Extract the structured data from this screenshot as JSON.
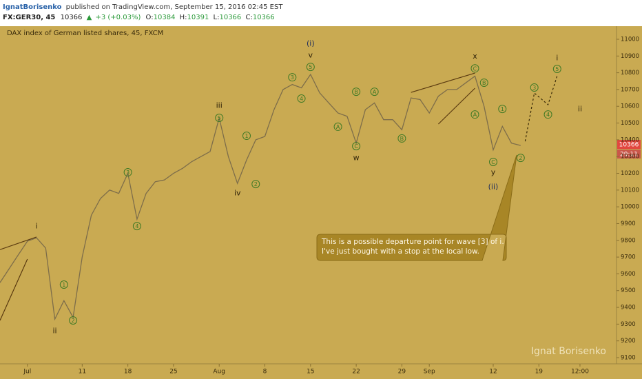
{
  "header": {
    "author": "IgnatBorisenko",
    "published": "published on TradingView.com, September 15, 2016 02:45 EST",
    "symbol": "FX:GER30, 45",
    "last": "10366",
    "arrow": "▲",
    "change": "+3 (+0.03%)",
    "o_label": "O:",
    "o": "10384",
    "h_label": "H:",
    "h": "10391",
    "l_label": "L:",
    "l": "10366",
    "c_label": "C:",
    "c": "10366"
  },
  "chart_data": {
    "type": "line",
    "title": "DAX index of German listed shares, 45, FXCM",
    "watermark": "Ignat Borisenko",
    "price_tag": "10366",
    "countdown": "29:11",
    "background": "#c9aa52",
    "xlim": [
      "2016-06-28",
      "2016-09-29 12:00"
    ],
    "xticks": [
      {
        "value": "2016-07-01",
        "label": "Jul"
      },
      {
        "value": "2016-07-11",
        "label": "11"
      },
      {
        "value": "2016-07-18",
        "label": "18"
      },
      {
        "value": "2016-07-25",
        "label": "25"
      },
      {
        "value": "2016-08-01",
        "label": "Aug"
      },
      {
        "value": "2016-08-08",
        "label": "8"
      },
      {
        "value": "2016-08-15",
        "label": "15"
      },
      {
        "value": "2016-08-22",
        "label": "22"
      },
      {
        "value": "2016-08-29",
        "label": "29"
      },
      {
        "value": "2016-09-01",
        "label": "Sep"
      },
      {
        "value": "2016-09-12",
        "label": "12"
      },
      {
        "value": "2016-09-19",
        "label": "19"
      },
      {
        "value": "2016-09-23 12:00",
        "label": "12:00"
      }
    ],
    "ylim": [
      9063,
      11078
    ],
    "yticks": [
      9100,
      9200,
      9300,
      9400,
      9500,
      9600,
      9700,
      9800,
      9900,
      10000,
      10100,
      10200,
      10300,
      10400,
      10500,
      10600,
      10700,
      10800,
      10900,
      11000
    ],
    "grid": false,
    "price": {
      "color": "#7d6d4a",
      "x": [
        "2016-06-28",
        "2016-06-30",
        "2016-07-01",
        "2016-07-04",
        "2016-07-05",
        "2016-07-06",
        "2016-07-07",
        "2016-07-08",
        "2016-07-11",
        "2016-07-12",
        "2016-07-13",
        "2016-07-14",
        "2016-07-15",
        "2016-07-18",
        "2016-07-19",
        "2016-07-20",
        "2016-07-21",
        "2016-07-22",
        "2016-07-25",
        "2016-07-26",
        "2016-07-27",
        "2016-07-28",
        "2016-07-29",
        "2016-08-01",
        "2016-08-02",
        "2016-08-03",
        "2016-08-04",
        "2016-08-05",
        "2016-08-08",
        "2016-08-09",
        "2016-08-10",
        "2016-08-11",
        "2016-08-12",
        "2016-08-15",
        "2016-08-16",
        "2016-08-17",
        "2016-08-18",
        "2016-08-19",
        "2016-08-22",
        "2016-08-23",
        "2016-08-24",
        "2016-08-25",
        "2016-08-26",
        "2016-08-29",
        "2016-08-30",
        "2016-08-31",
        "2016-09-01",
        "2016-09-02",
        "2016-09-05",
        "2016-09-06",
        "2016-09-07",
        "2016-09-08",
        "2016-09-09",
        "2016-09-12",
        "2016-09-13",
        "2016-09-14",
        "2016-09-15"
      ],
      "values": [
        9548,
        9713,
        9795,
        9815,
        9754,
        9330,
        9440,
        9340,
        9700,
        9950,
        10050,
        10100,
        10080,
        10200,
        9926,
        10080,
        10150,
        10160,
        10200,
        10230,
        10270,
        10300,
        10330,
        10530,
        10300,
        10140,
        10280,
        10400,
        10420,
        10580,
        10700,
        10730,
        10710,
        10790,
        10680,
        10620,
        10560,
        10540,
        10380,
        10580,
        10620,
        10520,
        10520,
        10460,
        10650,
        10640,
        10560,
        10660,
        10700,
        10700,
        10740,
        10780,
        10600,
        10340,
        10480,
        10380,
        10366
      ]
    },
    "projection": {
      "color": "#3a2a08",
      "dashed": true,
      "x": [
        "2016-09-15 12:00",
        "2016-09-16 12:00",
        "2016-09-20",
        "2016-09-21"
      ],
      "values": [
        10391,
        10679,
        10609,
        10782
      ]
    },
    "trendlines": [
      {
        "x": [
          "2016-06-28",
          "2016-07-04"
        ],
        "values": [
          9745,
          9820
        ]
      },
      {
        "x": [
          "2016-06-28",
          "2016-07-01"
        ],
        "values": [
          9322,
          9688
        ]
      },
      {
        "x": [
          "2016-08-30",
          "2016-09-08"
        ],
        "values": [
          10683,
          10798
        ]
      },
      {
        "x": [
          "2016-09-02",
          "2016-09-08"
        ],
        "values": [
          10494,
          10708
        ]
      }
    ],
    "annotation_colors": {
      "circle": "#3f7a25",
      "plain": "#2f2208",
      "degree": "#1f2d5c"
    },
    "annotations": [
      {
        "text": "i",
        "x": "2016-07-04",
        "y": 9885,
        "style": "plain"
      },
      {
        "text": "ii",
        "x": "2016-07-06",
        "y": 9260,
        "style": "plain"
      },
      {
        "text": "1",
        "x": "2016-07-07",
        "y": 9536,
        "style": "circle"
      },
      {
        "text": "2",
        "x": "2016-07-08",
        "y": 9322,
        "style": "circle"
      },
      {
        "text": "3",
        "x": "2016-07-18",
        "y": 10206,
        "style": "circle"
      },
      {
        "text": "4",
        "x": "2016-07-19",
        "y": 9885,
        "style": "circle"
      },
      {
        "text": "iii",
        "x": "2016-08-01",
        "y": 10605,
        "style": "plain"
      },
      {
        "text": "5",
        "x": "2016-08-01",
        "y": 10531,
        "style": "circle"
      },
      {
        "text": "1",
        "x": "2016-08-04",
        "y": 10424,
        "style": "circle"
      },
      {
        "text": "2",
        "x": "2016-08-05",
        "y": 10136,
        "style": "circle"
      },
      {
        "text": "iv",
        "x": "2016-08-03",
        "y": 10083,
        "style": "plain"
      },
      {
        "text": "3",
        "x": "2016-08-11",
        "y": 10773,
        "style": "circle"
      },
      {
        "text": "4",
        "x": "2016-08-12",
        "y": 10646,
        "style": "circle"
      },
      {
        "text": "5",
        "x": "2016-08-15",
        "y": 10835,
        "style": "circle"
      },
      {
        "text": "v",
        "x": "2016-08-15",
        "y": 10905,
        "style": "plain"
      },
      {
        "text": "(i)",
        "x": "2016-08-15",
        "y": 10975,
        "style": "degree"
      },
      {
        "text": "A",
        "x": "2016-08-18",
        "y": 10478,
        "style": "circle"
      },
      {
        "text": "B",
        "x": "2016-08-22",
        "y": 10687,
        "style": "circle"
      },
      {
        "text": "C",
        "x": "2016-08-22",
        "y": 10362,
        "style": "circle"
      },
      {
        "text": "w",
        "x": "2016-08-22",
        "y": 10292,
        "style": "plain"
      },
      {
        "text": "A",
        "x": "2016-08-24",
        "y": 10687,
        "style": "circle"
      },
      {
        "text": "B",
        "x": "2016-08-29",
        "y": 10408,
        "style": "circle"
      },
      {
        "text": "x",
        "x": "2016-09-08",
        "y": 10900,
        "style": "plain"
      },
      {
        "text": "C",
        "x": "2016-09-08",
        "y": 10826,
        "style": "circle"
      },
      {
        "text": "B",
        "x": "2016-09-09",
        "y": 10741,
        "style": "circle"
      },
      {
        "text": "A",
        "x": "2016-09-08",
        "y": 10551,
        "style": "circle"
      },
      {
        "text": "1",
        "x": "2016-09-13",
        "y": 10584,
        "style": "circle"
      },
      {
        "text": "C",
        "x": "2016-09-12",
        "y": 10268,
        "style": "circle"
      },
      {
        "text": "y",
        "x": "2016-09-12",
        "y": 10206,
        "style": "plain"
      },
      {
        "text": "(ii)",
        "x": "2016-09-12",
        "y": 10120,
        "style": "degree"
      },
      {
        "text": "2",
        "x": "2016-09-15",
        "y": 10292,
        "style": "circle"
      },
      {
        "text": "3",
        "x": "2016-09-16 12:00",
        "y": 10712,
        "style": "circle"
      },
      {
        "text": "4",
        "x": "2016-09-20",
        "y": 10551,
        "style": "circle"
      },
      {
        "text": "5",
        "x": "2016-09-21",
        "y": 10823,
        "style": "circle"
      },
      {
        "text": "i",
        "x": "2016-09-21",
        "y": 10889,
        "style": "plain"
      },
      {
        "text": "ii",
        "x": "2016-09-23 12:00",
        "y": 10584,
        "style": "plain"
      }
    ],
    "callout": [
      "This is a possible departure point for wave [3] of i.",
      "I've just bought with a stop at the local low."
    ]
  }
}
